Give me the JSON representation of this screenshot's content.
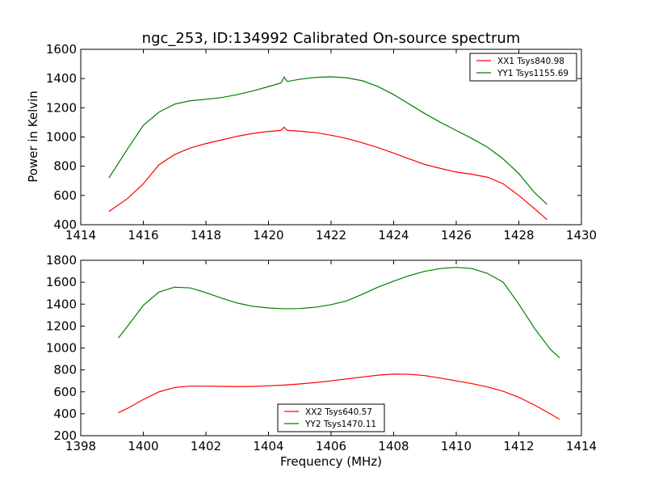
{
  "chart_data": [
    {
      "type": "line",
      "title": "ngc_253, ID:134992 Calibrated On-source spectrum",
      "xlabel": "",
      "ylabel": "Power in Kelvin",
      "xlim": [
        1414,
        1430
      ],
      "ylim": [
        400,
        1600
      ],
      "xticks": [
        "1414",
        "1416",
        "1418",
        "1420",
        "1422",
        "1424",
        "1426",
        "1428",
        "1430"
      ],
      "yticks": [
        "400",
        "600",
        "800",
        "1000",
        "1200",
        "1400",
        "1600"
      ],
      "legend_position": "top-right",
      "grid": false,
      "series": [
        {
          "name": "XX1 Tsys840.98",
          "color": "#ff0000",
          "points": [
            [
              1414.9,
              490
            ],
            [
              1415.5,
              580
            ],
            [
              1416.0,
              680
            ],
            [
              1416.5,
              810
            ],
            [
              1417.0,
              880
            ],
            [
              1417.5,
              925
            ],
            [
              1418.0,
              955
            ],
            [
              1418.5,
              980
            ],
            [
              1419.0,
              1005
            ],
            [
              1419.5,
              1025
            ],
            [
              1420.0,
              1038
            ],
            [
              1420.4,
              1045
            ],
            [
              1420.5,
              1068
            ],
            [
              1420.6,
              1045
            ],
            [
              1421.0,
              1040
            ],
            [
              1421.5,
              1030
            ],
            [
              1422.0,
              1012
            ],
            [
              1422.5,
              990
            ],
            [
              1423.0,
              960
            ],
            [
              1423.5,
              928
            ],
            [
              1424.0,
              890
            ],
            [
              1424.5,
              850
            ],
            [
              1425.0,
              812
            ],
            [
              1425.5,
              785
            ],
            [
              1426.0,
              760
            ],
            [
              1426.5,
              745
            ],
            [
              1427.0,
              725
            ],
            [
              1427.5,
              680
            ],
            [
              1428.0,
              600
            ],
            [
              1428.5,
              510
            ],
            [
              1428.9,
              435
            ]
          ]
        },
        {
          "name": "YY1 Tsys1155.69",
          "color": "#008000",
          "points": [
            [
              1414.9,
              720
            ],
            [
              1415.5,
              920
            ],
            [
              1416.0,
              1080
            ],
            [
              1416.5,
              1170
            ],
            [
              1417.0,
              1225
            ],
            [
              1417.5,
              1248
            ],
            [
              1418.0,
              1258
            ],
            [
              1418.5,
              1270
            ],
            [
              1419.0,
              1290
            ],
            [
              1419.5,
              1315
            ],
            [
              1420.0,
              1345
            ],
            [
              1420.4,
              1370
            ],
            [
              1420.5,
              1410
            ],
            [
              1420.6,
              1380
            ],
            [
              1421.0,
              1395
            ],
            [
              1421.5,
              1408
            ],
            [
              1422.0,
              1412
            ],
            [
              1422.5,
              1405
            ],
            [
              1423.0,
              1385
            ],
            [
              1423.5,
              1345
            ],
            [
              1424.0,
              1290
            ],
            [
              1424.5,
              1225
            ],
            [
              1425.0,
              1160
            ],
            [
              1425.5,
              1100
            ],
            [
              1426.0,
              1045
            ],
            [
              1426.5,
              990
            ],
            [
              1427.0,
              930
            ],
            [
              1427.5,
              850
            ],
            [
              1428.0,
              750
            ],
            [
              1428.5,
              620
            ],
            [
              1428.9,
              540
            ]
          ]
        }
      ]
    },
    {
      "type": "line",
      "title": "",
      "xlabel": "Frequency (MHz)",
      "ylabel": "",
      "xlim": [
        1398,
        1414
      ],
      "ylim": [
        200,
        1800
      ],
      "xticks": [
        "1398",
        "1400",
        "1402",
        "1404",
        "1406",
        "1408",
        "1410",
        "1412",
        "1414"
      ],
      "yticks": [
        "200",
        "400",
        "600",
        "800",
        "1000",
        "1200",
        "1400",
        "1600",
        "1800"
      ],
      "legend_position": "bottom-center",
      "grid": false,
      "series": [
        {
          "name": "XX2 Tsys640.57",
          "color": "#ff0000",
          "points": [
            [
              1399.2,
              410
            ],
            [
              1399.5,
              450
            ],
            [
              1400.0,
              530
            ],
            [
              1400.5,
              600
            ],
            [
              1401.0,
              640
            ],
            [
              1401.5,
              652
            ],
            [
              1402.0,
              652
            ],
            [
              1402.5,
              650
            ],
            [
              1403.0,
              648
            ],
            [
              1403.5,
              650
            ],
            [
              1404.0,
              655
            ],
            [
              1404.5,
              662
            ],
            [
              1405.0,
              672
            ],
            [
              1405.5,
              685
            ],
            [
              1406.0,
              700
            ],
            [
              1406.5,
              718
            ],
            [
              1407.0,
              735
            ],
            [
              1407.5,
              752
            ],
            [
              1408.0,
              762
            ],
            [
              1408.5,
              760
            ],
            [
              1409.0,
              748
            ],
            [
              1409.5,
              725
            ],
            [
              1410.0,
              700
            ],
            [
              1410.5,
              675
            ],
            [
              1411.0,
              645
            ],
            [
              1411.5,
              605
            ],
            [
              1412.0,
              550
            ],
            [
              1412.5,
              480
            ],
            [
              1413.0,
              400
            ],
            [
              1413.3,
              350
            ]
          ]
        },
        {
          "name": "YY2 Tsys1470.11",
          "color": "#008000",
          "points": [
            [
              1399.2,
              1090
            ],
            [
              1399.5,
              1200
            ],
            [
              1400.0,
              1390
            ],
            [
              1400.5,
              1510
            ],
            [
              1401.0,
              1555
            ],
            [
              1401.5,
              1548
            ],
            [
              1402.0,
              1505
            ],
            [
              1402.5,
              1455
            ],
            [
              1403.0,
              1410
            ],
            [
              1403.5,
              1380
            ],
            [
              1404.0,
              1365
            ],
            [
              1404.5,
              1358
            ],
            [
              1405.0,
              1360
            ],
            [
              1405.5,
              1372
            ],
            [
              1406.0,
              1395
            ],
            [
              1406.5,
              1430
            ],
            [
              1407.0,
              1490
            ],
            [
              1407.5,
              1555
            ],
            [
              1408.0,
              1610
            ],
            [
              1408.5,
              1660
            ],
            [
              1409.0,
              1700
            ],
            [
              1409.5,
              1725
            ],
            [
              1410.0,
              1735
            ],
            [
              1410.5,
              1725
            ],
            [
              1411.0,
              1680
            ],
            [
              1411.5,
              1600
            ],
            [
              1412.0,
              1400
            ],
            [
              1412.5,
              1180
            ],
            [
              1413.0,
              990
            ],
            [
              1413.3,
              910
            ]
          ]
        }
      ]
    }
  ]
}
